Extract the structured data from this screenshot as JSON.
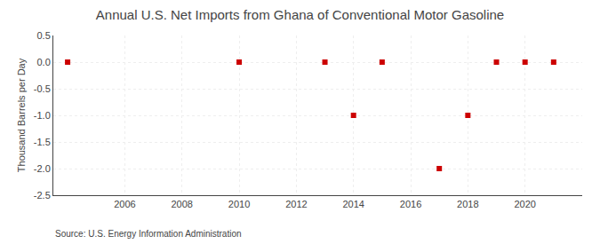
{
  "chart_data": {
    "type": "scatter",
    "title": "Annual U.S. Net Imports from Ghana of Conventional Motor Gasoline",
    "ylabel": "Thousand Barrels per Day",
    "annotations": [
      "Source: U.S. Energy Information Administration"
    ],
    "x": [
      2004,
      2010,
      2013,
      2014,
      2015,
      2017,
      2018,
      2019,
      2020,
      2021
    ],
    "values": [
      0.0,
      0.0,
      0.0,
      -1.0,
      0.0,
      -2.0,
      -1.0,
      0.0,
      0.0,
      0.0
    ],
    "color": "#cc0000",
    "marker": "square",
    "xlim": [
      2003.5,
      2022.0
    ],
    "ylim": [
      -2.5,
      0.5
    ],
    "xticks": [
      2006,
      2008,
      2010,
      2012,
      2014,
      2016,
      2018,
      2020
    ],
    "yticks": [
      0.5,
      {
        "value": 0.0,
        "label": "0.0"
      },
      -0.5,
      {
        "value": -1.0,
        "label": "-1.0"
      },
      -1.5,
      {
        "value": -2.0,
        "label": "-2.0"
      },
      -2.5
    ],
    "grid": true
  }
}
